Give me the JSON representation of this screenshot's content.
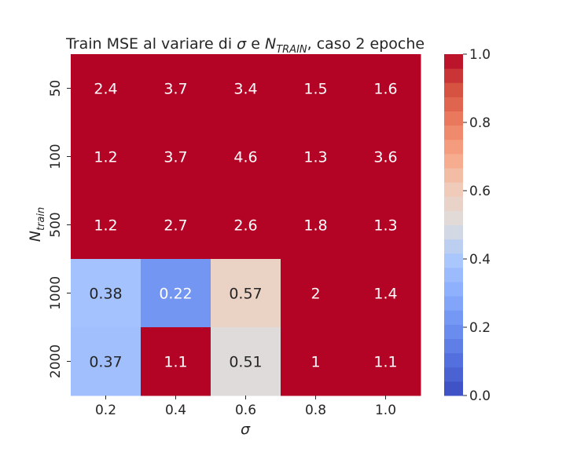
{
  "chart_data": {
    "type": "heatmap",
    "title_prefix": "Train MSE al variare di ",
    "title_sigma": "σ",
    "title_mid": " e ",
    "title_n": "N",
    "title_n_sub": "TRAIN",
    "title_suffix": ", caso 2 epoche",
    "xlabel": "σ",
    "ylabel_main": "N",
    "ylabel_sub": "train",
    "x_categories": [
      "0.2",
      "0.4",
      "0.6",
      "0.8",
      "1.0"
    ],
    "y_categories": [
      "50",
      "100",
      "500",
      "1000",
      "2000"
    ],
    "values": [
      [
        2.4,
        3.7,
        3.4,
        1.5,
        1.6
      ],
      [
        1.2,
        3.7,
        4.6,
        1.3,
        3.6
      ],
      [
        1.2,
        2.7,
        2.6,
        1.8,
        1.3
      ],
      [
        0.38,
        0.22,
        0.57,
        2,
        1.4
      ],
      [
        0.37,
        1.1,
        0.51,
        1,
        1.1
      ]
    ],
    "annotations": [
      [
        "2.4",
        "3.7",
        "3.4",
        "1.5",
        "1.6"
      ],
      [
        "1.2",
        "3.7",
        "4.6",
        "1.3",
        "3.6"
      ],
      [
        "1.2",
        "2.7",
        "2.6",
        "1.8",
        "1.3"
      ],
      [
        "0.38",
        "0.22",
        "0.57",
        "2",
        "1.4"
      ],
      [
        "0.37",
        "1.1",
        "0.51",
        "1",
        "1.1"
      ]
    ],
    "vmin": 0.0,
    "vmax": 1.0,
    "colormap": "coolwarm",
    "colorbar_levels": 24,
    "colorbar_ticks": [
      "0.0",
      "0.2",
      "0.4",
      "0.6",
      "0.8",
      "1.0"
    ],
    "colorbar_tick_values": [
      0.0,
      0.2,
      0.4,
      0.6,
      0.8,
      1.0
    ],
    "grid": false
  }
}
